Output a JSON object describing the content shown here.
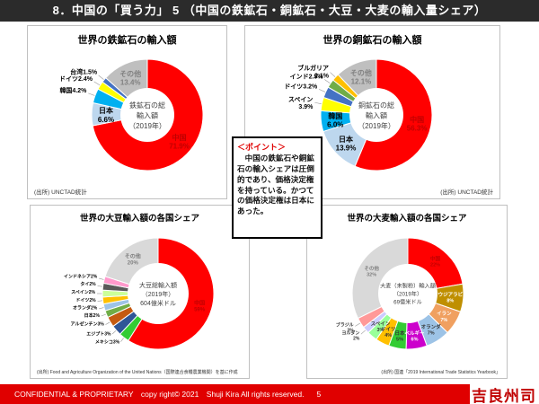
{
  "header": {
    "title": "8．中国の「買う力」 5 （中国の鉄鉱石・銅鉱石・大豆・大麦の輸入量シェア）"
  },
  "points_box": {
    "heading": "＜ポイント＞",
    "body": "　中国の鉄鉱石や銅鉱石の輸入シェアは圧倒的であり、価格決定権を持っている。かつての価格決定権は日本にあった。"
  },
  "footer": {
    "text": "CONFIDENTIAL & PROPRIETARY　copy right© 2021　Shuji Kira All rights reserved.",
    "page": "5",
    "logo": "吉良州司",
    "bar_color": "#e00000"
  },
  "chart_data": [
    {
      "id": "iron",
      "type": "pie",
      "title": "世界の鉄鉱石の輸入額",
      "center_label": [
        "鉄鉱石の総",
        "輸入額",
        "（2019年）"
      ],
      "source": "(出所) UNCTAD統計",
      "categories": [
        "中国",
        "日本",
        "韓国",
        "ドイツ",
        "台湾",
        "その他"
      ],
      "values": [
        71.9,
        6.6,
        4.2,
        2.4,
        1.5,
        13.4
      ],
      "slices": [
        {
          "label": "中国",
          "pct": "71.9%",
          "value": 71.9,
          "color": "#ff0000",
          "pos": "in",
          "stack": true,
          "label_color": "#c00000"
        },
        {
          "label": "日本",
          "pct": "6.6%",
          "value": 6.6,
          "color": "#bdd7ee",
          "pos": "in",
          "stack": true,
          "label_color": "#000000"
        },
        {
          "label": "韓国",
          "pct": "4.2%",
          "value": 4.2,
          "color": "#00b0f0",
          "pos": "out",
          "stack": false,
          "label_color": "#000000"
        },
        {
          "label": "ドイツ",
          "pct": "2.4%",
          "value": 2.4,
          "color": "#ffff00",
          "pos": "out",
          "stack": false,
          "label_color": "#000000"
        },
        {
          "label": "台湾",
          "pct": "1.5%",
          "value": 1.5,
          "color": "#4472c4",
          "pos": "out",
          "stack": false,
          "label_color": "#000000"
        },
        {
          "label": "その他",
          "pct": "13.4%",
          "value": 13.4,
          "color": "#bfbfbf",
          "pos": "in",
          "stack": true,
          "label_color": "#808080"
        }
      ]
    },
    {
      "id": "copper",
      "type": "pie",
      "title": "世界の銅鉱石の輸入額",
      "center_label": [
        "銅鉱石の総",
        "輸入額",
        "（2019年）"
      ],
      "source": "(出所) UNCTAD統計",
      "categories": [
        "中国",
        "日本",
        "韓国",
        "スペイン",
        "ドイツ",
        "インド",
        "ブルガリア",
        "その他"
      ],
      "values": [
        56.3,
        13.9,
        6.0,
        3.9,
        3.2,
        2.5,
        2.1,
        12.1
      ],
      "slices": [
        {
          "label": "中国",
          "pct": "56.3%",
          "value": 56.3,
          "color": "#ff0000",
          "pos": "in",
          "stack": true,
          "label_color": "#c00000"
        },
        {
          "label": "日本",
          "pct": "13.9%",
          "value": 13.9,
          "color": "#bdd7ee",
          "pos": "in",
          "stack": true,
          "label_color": "#000000"
        },
        {
          "label": "韓国",
          "pct": "6.0%",
          "value": 6.0,
          "color": "#00b0f0",
          "pos": "in",
          "stack": true,
          "label_color": "#000000"
        },
        {
          "label": "スペイン",
          "pct": "3.9%",
          "value": 3.9,
          "color": "#ffff00",
          "pos": "out",
          "stack": true,
          "label_color": "#000000"
        },
        {
          "label": "ドイツ",
          "pct": "3.2%",
          "value": 3.2,
          "color": "#4472c4",
          "pos": "out",
          "stack": false,
          "label_color": "#000000"
        },
        {
          "label": "インド",
          "pct": "2.5%",
          "value": 2.5,
          "color": "#70ad47",
          "pos": "out",
          "stack": false,
          "label_color": "#000000"
        },
        {
          "label": "ブルガリア",
          "pct": "2.1%",
          "value": 2.1,
          "color": "#ffc000",
          "pos": "out",
          "stack": true,
          "label_color": "#000000"
        },
        {
          "label": "その他",
          "pct": "12.1%",
          "value": 12.1,
          "color": "#bfbfbf",
          "pos": "in",
          "stack": true,
          "label_color": "#808080"
        }
      ]
    },
    {
      "id": "soy",
      "type": "pie",
      "title": "世界の大豆輸入額の各国シェア",
      "center_label": [
        "大豆総輸入額",
        "（2019年）",
        "604億米ドル"
      ],
      "source": "(出所) Food and Agriculture Organization of the United Nations（国際連合食糧農業機関）を基に作成",
      "categories": [
        "中国",
        "メキシコ",
        "エジプト",
        "アルゼンチン",
        "日本",
        "オランダ",
        "ドイツ",
        "スペイン",
        "タイ",
        "インドネシア",
        "その他"
      ],
      "values": [
        59,
        3,
        3,
        3,
        2,
        2,
        2,
        2,
        2,
        2,
        20
      ],
      "slices": [
        {
          "label": "中国",
          "pct": "59%",
          "value": 59,
          "color": "#ff0000",
          "pos": "in",
          "stack": true,
          "label_color": "#c00000"
        },
        {
          "label": "メキシコ",
          "pct": "3%",
          "value": 3,
          "color": "#33cc33",
          "pos": "out",
          "stack": false,
          "label_color": "#000000"
        },
        {
          "label": "エジプト",
          "pct": "3%",
          "value": 3,
          "color": "#2f5597",
          "pos": "out",
          "stack": false,
          "label_color": "#000000"
        },
        {
          "label": "アルゼンチン",
          "pct": "3%",
          "value": 3,
          "color": "#c55a11",
          "pos": "out",
          "stack": false,
          "label_color": "#000000"
        },
        {
          "label": "日本",
          "pct": "2%",
          "value": 2,
          "color": "#70ad47",
          "pos": "out",
          "stack": false,
          "label_color": "#000000"
        },
        {
          "label": "オランダ",
          "pct": "2%",
          "value": 2,
          "color": "#9dc3e6",
          "pos": "out",
          "stack": false,
          "label_color": "#000000"
        },
        {
          "label": "ドイツ",
          "pct": "2%",
          "value": 2,
          "color": "#ffc000",
          "pos": "out",
          "stack": false,
          "label_color": "#000000"
        },
        {
          "label": "スペイン",
          "pct": "2%",
          "value": 2,
          "color": "#ccff99",
          "pos": "out",
          "stack": false,
          "label_color": "#000000"
        },
        {
          "label": "タイ",
          "pct": "2%",
          "value": 2,
          "color": "#595959",
          "pos": "out",
          "stack": false,
          "label_color": "#000000"
        },
        {
          "label": "インドネシア",
          "pct": "2%",
          "value": 2,
          "color": "#ff99cc",
          "pos": "out",
          "stack": false,
          "label_color": "#000000"
        },
        {
          "label": "その他",
          "pct": "20%",
          "value": 20,
          "color": "#d9d9d9",
          "pos": "in",
          "stack": true,
          "label_color": "#808080"
        }
      ]
    },
    {
      "id": "barley",
      "type": "pie",
      "title": "世界の大麦輸入額の各国シェア",
      "center_label": [
        "大麦（未製粉）輸入額",
        "（2019年）",
        "69億米ドル"
      ],
      "source": "(出所) 国連「2019 International Trade Statistics Yearbook」",
      "categories": [
        "中国",
        "サウジアラビア",
        "イラン",
        "オランダ",
        "ベルギー",
        "日本",
        "ドイツ",
        "スペイン",
        "ヨルダン",
        "ブラジル",
        "その他"
      ],
      "values": [
        22,
        8,
        7,
        7,
        6,
        5,
        4,
        3,
        2,
        3,
        32
      ],
      "slices": [
        {
          "label": "中国",
          "pct": "22%",
          "value": 22,
          "color": "#ff0000",
          "pos": "in",
          "stack": true,
          "label_color": "#c00000"
        },
        {
          "label": "サウジアラビア",
          "pct": "8%",
          "value": 8,
          "color": "#bf8f00",
          "pos": "in",
          "stack": true,
          "label_color": "#ffffff"
        },
        {
          "label": "イラン",
          "pct": "7%",
          "value": 7,
          "color": "#f0a060",
          "pos": "in",
          "stack": true,
          "label_color": "#ffffff"
        },
        {
          "label": "オランダ",
          "pct": "7%",
          "value": 7,
          "color": "#9dc3e6",
          "pos": "in",
          "stack": true,
          "label_color": "#333333"
        },
        {
          "label": "ベルギー",
          "pct": "6%",
          "value": 6,
          "color": "#cc00cc",
          "pos": "in",
          "stack": true,
          "label_color": "#ffffff"
        },
        {
          "label": "日本",
          "pct": "5%",
          "value": 5,
          "color": "#33cc33",
          "pos": "in",
          "stack": true,
          "label_color": "#333333"
        },
        {
          "label": "ドイツ",
          "pct": "4%",
          "value": 4,
          "color": "#ffc000",
          "pos": "in",
          "stack": true,
          "label_color": "#333333"
        },
        {
          "label": "スペイン",
          "pct": "3%",
          "value": 3,
          "color": "#99ff99",
          "pos": "in",
          "stack": true,
          "label_color": "#333333"
        },
        {
          "label": "ヨルダン",
          "pct": "2%",
          "value": 2,
          "color": "#ccccff",
          "pos": "out",
          "stack": true,
          "label_color": "#333333"
        },
        {
          "label": "ブラジル",
          "pct": "3%",
          "value": 3,
          "color": "#ff9999",
          "pos": "out",
          "stack": true,
          "label_color": "#333333"
        },
        {
          "label": "その他",
          "pct": "32%",
          "value": 32,
          "color": "#d9d9d9",
          "pos": "in",
          "stack": true,
          "label_color": "#808080"
        }
      ]
    }
  ]
}
